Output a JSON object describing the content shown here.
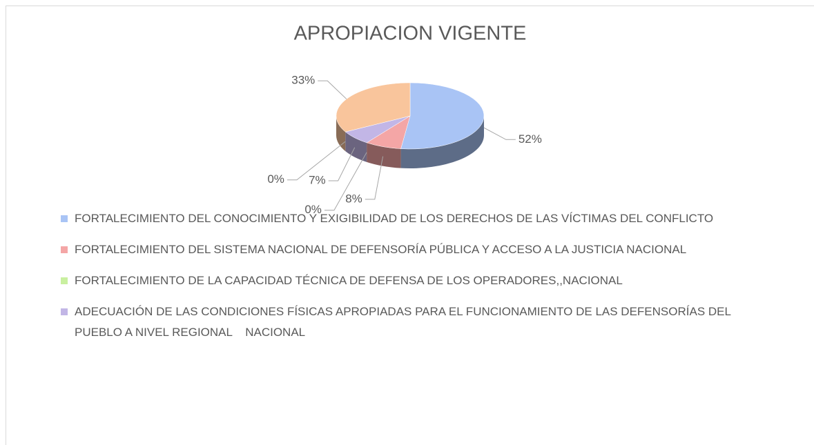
{
  "chart_data": {
    "type": "pie",
    "title": "APROPIACION VIGENTE",
    "categories": [
      "FORTALECIMIENTO DEL CONOCIMIENTO Y EXIGIBILIDAD DE LOS DERECHOS DE LAS VÍCTIMAS DEL CONFLICTO",
      "FORTALECIMIENTO DEL SISTEMA NACIONAL DE DEFENSORÍA PÚBLICA Y ACCESO A LA JUSTICIA NACIONAL",
      "FORTALECIMIENTO DE LA CAPACIDAD TÉCNICA DE DEFENSA DE LOS OPERADORES,,NACIONAL",
      "ADECUACIÓN DE LAS CONDICIONES FÍSICAS APROPIADAS PARA EL FUNCIONAMIENTO DE LAS DEFENSORÍAS DEL PUEBLO A NIVEL REGIONAL    NACIONAL",
      null,
      null
    ],
    "values": [
      52,
      8,
      0,
      7,
      0,
      33
    ],
    "value_labels": [
      "52%",
      "8%",
      "0%",
      "7%",
      "0%",
      "33%"
    ],
    "colors": [
      "#a9c4f5",
      "#f4a6a6",
      "#c9f0a0",
      "#c2b6e6",
      "#9fd9d9",
      "#f9c59c"
    ],
    "legend": "bottom"
  }
}
